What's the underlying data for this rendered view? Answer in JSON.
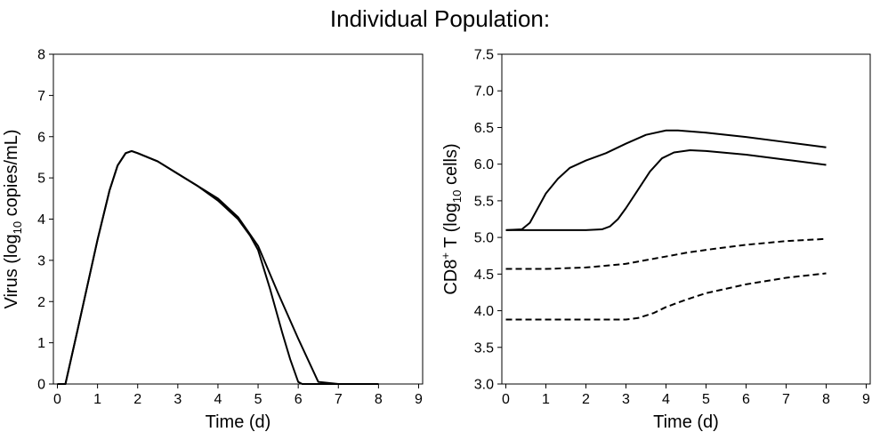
{
  "figure": {
    "title": "Individual Population:"
  },
  "chart_data": [
    {
      "type": "line",
      "xlabel": "Time (d)",
      "ylabel": {
        "pre": "Virus (log",
        "sub": "10",
        "post": " copies/mL)"
      },
      "xlim": [
        -0.1,
        9.1
      ],
      "ylim": [
        0,
        8
      ],
      "xticks": [
        "0",
        "1",
        "2",
        "3",
        "4",
        "5",
        "6",
        "7",
        "8",
        "9"
      ],
      "yticks": [
        "0",
        "1",
        "2",
        "3",
        "4",
        "5",
        "6",
        "7",
        "8"
      ],
      "grid": false,
      "series": [
        {
          "style": "solid",
          "x": [
            0,
            0.2,
            0.5,
            1.0,
            1.3,
            1.5,
            1.7,
            1.85,
            2.0,
            2.5,
            3.0,
            3.5,
            4.0,
            4.5,
            5.0,
            5.5,
            6.0,
            6.5,
            7.0,
            7.25,
            8.0
          ],
          "y": [
            0,
            0,
            1.3,
            3.5,
            4.7,
            5.3,
            5.6,
            5.65,
            5.6,
            5.4,
            5.1,
            4.8,
            4.5,
            4.05,
            3.35,
            2.2,
            1.1,
            0.05,
            0,
            0,
            0
          ]
        },
        {
          "style": "solid",
          "x": [
            0,
            0.2,
            0.5,
            1.0,
            1.3,
            1.5,
            1.7,
            1.85,
            2.0,
            2.5,
            3.0,
            3.5,
            4.0,
            4.5,
            4.8,
            5.0,
            5.3,
            5.6,
            5.8,
            6.0,
            6.1,
            8.0
          ],
          "y": [
            0,
            0,
            1.3,
            3.5,
            4.7,
            5.3,
            5.6,
            5.65,
            5.6,
            5.4,
            5.1,
            4.8,
            4.45,
            4.0,
            3.6,
            3.25,
            2.3,
            1.25,
            0.6,
            0.05,
            0,
            0
          ]
        }
      ]
    },
    {
      "type": "line",
      "xlabel": "Time (d)",
      "ylabel": {
        "pre": "CD8",
        "sup": "+",
        "mid": " T (log",
        "sub": "10",
        "post": " cells)"
      },
      "xlim": [
        -0.1,
        9.1
      ],
      "ylim": [
        3.0,
        7.5
      ],
      "xticks": [
        "0",
        "1",
        "2",
        "3",
        "4",
        "5",
        "6",
        "7",
        "8",
        "9"
      ],
      "yticks": [
        "3.0",
        "3.5",
        "4.0",
        "4.5",
        "5.0",
        "5.5",
        "6.0",
        "6.5",
        "7.0",
        "7.5"
      ],
      "grid": false,
      "series": [
        {
          "style": "solid",
          "x": [
            0,
            0.4,
            0.6,
            0.8,
            1.0,
            1.3,
            1.6,
            2.0,
            2.5,
            3.0,
            3.5,
            4.0,
            4.3,
            5.0,
            6.0,
            7.0,
            8.0
          ],
          "y": [
            5.1,
            5.11,
            5.2,
            5.4,
            5.6,
            5.8,
            5.95,
            6.05,
            6.15,
            6.28,
            6.4,
            6.46,
            6.46,
            6.43,
            6.37,
            6.3,
            6.23
          ]
        },
        {
          "style": "solid",
          "x": [
            0,
            1.0,
            2.0,
            2.4,
            2.6,
            2.8,
            3.0,
            3.3,
            3.6,
            3.9,
            4.2,
            4.6,
            5.0,
            6.0,
            7.0,
            8.0
          ],
          "y": [
            5.1,
            5.1,
            5.1,
            5.11,
            5.15,
            5.25,
            5.4,
            5.65,
            5.9,
            6.08,
            6.16,
            6.19,
            6.18,
            6.13,
            6.06,
            5.99
          ]
        },
        {
          "style": "dashed",
          "x": [
            0,
            1.0,
            2.0,
            3.0,
            3.5,
            4.0,
            4.5,
            5.0,
            6.0,
            7.0,
            8.0
          ],
          "y": [
            4.57,
            4.57,
            4.59,
            4.64,
            4.69,
            4.74,
            4.79,
            4.83,
            4.9,
            4.95,
            4.98
          ]
        },
        {
          "style": "dashed",
          "x": [
            0,
            1.0,
            2.0,
            3.0,
            3.3,
            3.7,
            4.0,
            4.5,
            5.0,
            6.0,
            7.0,
            8.0
          ],
          "y": [
            3.88,
            3.88,
            3.88,
            3.88,
            3.9,
            3.97,
            4.05,
            4.15,
            4.24,
            4.36,
            4.45,
            4.51
          ]
        }
      ]
    }
  ]
}
